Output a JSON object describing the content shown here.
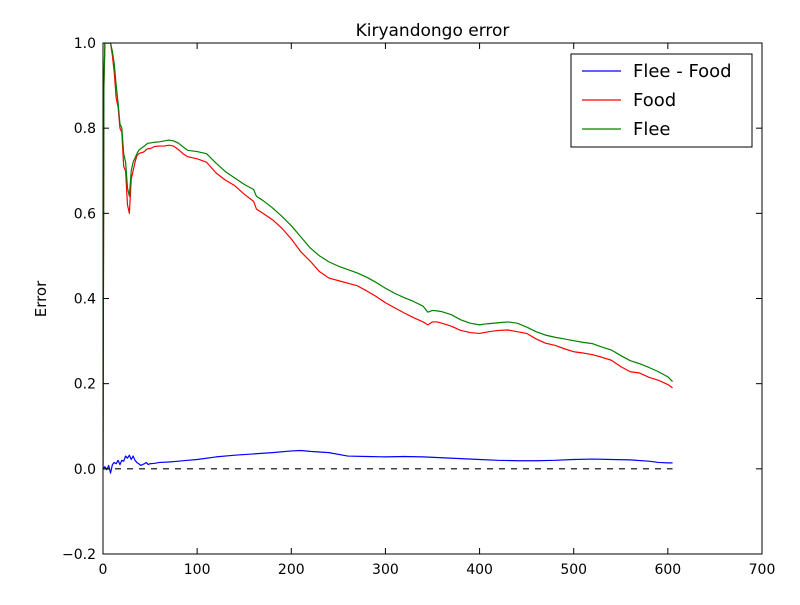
{
  "chart_data": {
    "type": "line",
    "title": "Kiryandongo error",
    "xlabel": "",
    "ylabel": "Error",
    "xlim": [
      0,
      700
    ],
    "ylim": [
      -0.2,
      1.0
    ],
    "xticks": [
      0,
      100,
      200,
      300,
      400,
      500,
      600,
      700
    ],
    "xtick_labels": [
      "0",
      "100",
      "200",
      "300",
      "400",
      "500",
      "600",
      "700"
    ],
    "yticks": [
      -0.2,
      0.0,
      0.2,
      0.4,
      0.6,
      0.8,
      1.0
    ],
    "ytick_labels": [
      "−0.2",
      "0.0",
      "0.2",
      "0.4",
      "0.6",
      "0.8",
      "1.0"
    ],
    "grid": false,
    "legend": {
      "placement": "top-right"
    },
    "reference_line": {
      "y": 0.0,
      "x": [
        0,
        605
      ],
      "style": "dashed",
      "color": "#000000"
    },
    "series": [
      {
        "name": "Flee - Food",
        "color": "#0000ff",
        "x": [
          0,
          2,
          4,
          6,
          8,
          10,
          12,
          14,
          16,
          18,
          20,
          22,
          24,
          26,
          28,
          30,
          32,
          34,
          36,
          38,
          40,
          42,
          44,
          46,
          48,
          50,
          55,
          60,
          70,
          80,
          90,
          100,
          120,
          140,
          160,
          180,
          200,
          210,
          220,
          240,
          260,
          280,
          300,
          320,
          340,
          360,
          380,
          400,
          420,
          440,
          460,
          480,
          500,
          520,
          540,
          560,
          580,
          590,
          600,
          605
        ],
        "y": [
          0.0,
          0.005,
          -0.002,
          0.008,
          -0.01,
          0.01,
          0.015,
          0.012,
          0.02,
          0.01,
          0.02,
          0.018,
          0.03,
          0.025,
          0.032,
          0.022,
          0.03,
          0.02,
          0.015,
          0.012,
          0.008,
          0.01,
          0.012,
          0.015,
          0.01,
          0.012,
          0.013,
          0.015,
          0.016,
          0.018,
          0.02,
          0.022,
          0.028,
          0.032,
          0.035,
          0.038,
          0.042,
          0.043,
          0.041,
          0.038,
          0.03,
          0.029,
          0.028,
          0.029,
          0.028,
          0.026,
          0.024,
          0.022,
          0.02,
          0.019,
          0.019,
          0.02,
          0.022,
          0.023,
          0.022,
          0.021,
          0.018,
          0.015,
          0.014,
          0.014
        ]
      },
      {
        "name": "Food",
        "color": "#ff0000",
        "x": [
          0,
          1,
          2,
          4,
          6,
          8,
          10,
          12,
          14,
          16,
          18,
          20,
          22,
          24,
          26,
          28,
          30,
          32,
          34,
          36,
          38,
          40,
          42,
          44,
          46,
          48,
          50,
          55,
          60,
          65,
          70,
          75,
          80,
          85,
          90,
          100,
          110,
          120,
          130,
          140,
          150,
          160,
          163,
          170,
          180,
          190,
          200,
          210,
          220,
          230,
          240,
          250,
          260,
          270,
          280,
          290,
          300,
          310,
          320,
          330,
          340,
          345,
          350,
          355,
          360,
          370,
          380,
          390,
          400,
          405,
          410,
          420,
          430,
          440,
          450,
          460,
          470,
          480,
          490,
          500,
          510,
          520,
          530,
          540,
          550,
          560,
          570,
          580,
          590,
          600,
          605
        ],
        "y": [
          0.0,
          0.9,
          1.0,
          1.0,
          1.0,
          1.0,
          0.97,
          0.93,
          0.87,
          0.85,
          0.8,
          0.79,
          0.71,
          0.7,
          0.62,
          0.6,
          0.68,
          0.7,
          0.72,
          0.735,
          0.74,
          0.742,
          0.743,
          0.745,
          0.75,
          0.752,
          0.752,
          0.757,
          0.758,
          0.758,
          0.76,
          0.758,
          0.75,
          0.74,
          0.733,
          0.728,
          0.72,
          0.695,
          0.678,
          0.665,
          0.645,
          0.628,
          0.61,
          0.6,
          0.585,
          0.565,
          0.54,
          0.51,
          0.488,
          0.463,
          0.448,
          0.442,
          0.436,
          0.43,
          0.418,
          0.405,
          0.39,
          0.378,
          0.366,
          0.355,
          0.345,
          0.338,
          0.345,
          0.345,
          0.342,
          0.335,
          0.325,
          0.32,
          0.318,
          0.32,
          0.322,
          0.325,
          0.326,
          0.322,
          0.318,
          0.305,
          0.295,
          0.29,
          0.282,
          0.275,
          0.272,
          0.268,
          0.262,
          0.255,
          0.24,
          0.228,
          0.225,
          0.215,
          0.208,
          0.198,
          0.19
        ]
      },
      {
        "name": "Flee",
        "color": "#008000",
        "x": [
          0,
          1,
          2,
          4,
          6,
          8,
          10,
          12,
          14,
          16,
          18,
          20,
          22,
          24,
          26,
          28,
          30,
          32,
          34,
          36,
          38,
          40,
          42,
          44,
          46,
          48,
          50,
          55,
          60,
          65,
          70,
          75,
          80,
          85,
          90,
          100,
          110,
          120,
          130,
          140,
          150,
          160,
          163,
          170,
          180,
          190,
          200,
          210,
          220,
          230,
          240,
          250,
          260,
          270,
          280,
          290,
          300,
          310,
          320,
          330,
          340,
          345,
          350,
          355,
          360,
          370,
          380,
          390,
          400,
          405,
          410,
          420,
          430,
          440,
          450,
          460,
          470,
          480,
          490,
          500,
          510,
          520,
          530,
          540,
          550,
          560,
          570,
          580,
          590,
          600,
          605
        ],
        "y": [
          0.0,
          0.9,
          1.0,
          1.0,
          1.0,
          1.0,
          0.98,
          0.95,
          0.9,
          0.86,
          0.81,
          0.8,
          0.74,
          0.72,
          0.66,
          0.64,
          0.7,
          0.72,
          0.73,
          0.74,
          0.748,
          0.752,
          0.755,
          0.758,
          0.762,
          0.765,
          0.765,
          0.767,
          0.768,
          0.77,
          0.772,
          0.77,
          0.765,
          0.756,
          0.748,
          0.745,
          0.74,
          0.718,
          0.698,
          0.683,
          0.668,
          0.656,
          0.64,
          0.63,
          0.613,
          0.593,
          0.571,
          0.545,
          0.519,
          0.5,
          0.486,
          0.476,
          0.468,
          0.46,
          0.45,
          0.438,
          0.424,
          0.412,
          0.402,
          0.393,
          0.382,
          0.368,
          0.372,
          0.371,
          0.369,
          0.362,
          0.35,
          0.342,
          0.338,
          0.34,
          0.341,
          0.343,
          0.345,
          0.342,
          0.333,
          0.322,
          0.314,
          0.309,
          0.305,
          0.301,
          0.297,
          0.294,
          0.286,
          0.279,
          0.266,
          0.254,
          0.247,
          0.238,
          0.228,
          0.216,
          0.205
        ]
      }
    ]
  }
}
